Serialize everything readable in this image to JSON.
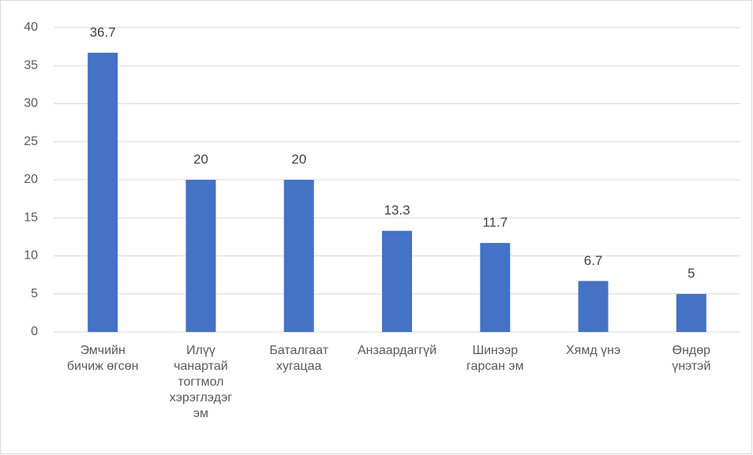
{
  "chart_data": {
    "type": "bar",
    "categories": [
      "Эмчийн\nбичиж өгсөн",
      "Илүү\nчанартай\nтогтмол\nхэрэглэдэг\nэм",
      "Баталгаат\nхугацаа",
      "Анзаардаггүй",
      "Шинээр\nгарсан эм",
      "Хямд үнэ",
      "Өндөр\nүнэтэй"
    ],
    "values": [
      36.7,
      20,
      20,
      13.3,
      11.7,
      6.7,
      5
    ],
    "color": "#4472c4",
    "ylim": [
      0,
      40
    ],
    "yticks": [
      0,
      5,
      10,
      15,
      20,
      25,
      30,
      35,
      40
    ],
    "grid": true
  }
}
